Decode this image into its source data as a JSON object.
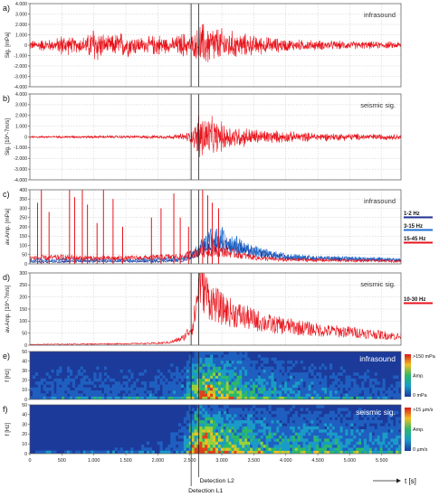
{
  "figure": {
    "time_axis": {
      "label": "t [s]",
      "range": [
        0,
        5800
      ],
      "ticks": [
        0,
        500,
        1000,
        1500,
        2000,
        2500,
        3000,
        3500,
        4000,
        4500,
        5000,
        5500
      ],
      "tick_labels": [
        "0",
        "500",
        "1.000",
        "1.500",
        "2.000",
        "2.500",
        "3.000",
        "3.500",
        "4.000",
        "4.500",
        "5.000",
        "5.500"
      ]
    },
    "detections": [
      {
        "label": "Detection L1",
        "t": 2520
      },
      {
        "label": "Detection L2",
        "t": 2640
      }
    ]
  },
  "chart_data": [
    {
      "panel": "a)",
      "type": "line",
      "annotation": "infrasound",
      "ylabel": "Sig. [mPa]",
      "ylim": [
        -4000,
        4000
      ],
      "y_ticks": [
        -4000,
        -3000,
        -2000,
        -1000,
        0,
        1000,
        2000,
        3000,
        4000
      ],
      "y_tick_labels": [
        "-4.000",
        "-3.000",
        "-2.000",
        "-1.000",
        "0",
        "1.000",
        "2.000",
        "3.000",
        "4.000"
      ],
      "grid": true,
      "color": "#e8141c",
      "envelope": {
        "t": [
          0,
          200,
          400,
          500,
          700,
          900,
          1000,
          1200,
          1400,
          1600,
          1800,
          2000,
          2200,
          2400,
          2500,
          2600,
          2650,
          2800,
          3000,
          3200,
          3500,
          3800,
          4100,
          4500,
          5000,
          5500,
          5800
        ],
        "amp": [
          500,
          700,
          650,
          1300,
          800,
          1100,
          2400,
          900,
          1500,
          1200,
          800,
          1300,
          700,
          1500,
          1000,
          1500,
          2600,
          2400,
          1900,
          1500,
          1100,
          850,
          650,
          550,
          450,
          400,
          380
        ]
      }
    },
    {
      "panel": "b)",
      "type": "line",
      "annotation": "seismic sig.",
      "ylabel": "Sig. [10^-7m/s]",
      "ylim": [
        -4000,
        4000
      ],
      "y_ticks": [
        -4000,
        -3000,
        -2000,
        -1000,
        0,
        1000,
        2000,
        3000,
        4000
      ],
      "y_tick_labels": [
        "-4.000",
        "-3.000",
        "-2.000",
        "-1.000",
        "0",
        "1.000",
        "2.000",
        "3.000",
        "4.000"
      ],
      "grid": true,
      "color": "#e8141c",
      "envelope": {
        "t": [
          0,
          500,
          1000,
          1500,
          2000,
          2300,
          2500,
          2600,
          2650,
          2700,
          2900,
          3200,
          3600,
          4000,
          4500,
          5000,
          5500,
          5800
        ],
        "amp": [
          120,
          120,
          150,
          150,
          180,
          250,
          600,
          1500,
          3300,
          2700,
          1800,
          1200,
          800,
          600,
          450,
          380,
          320,
          300
        ]
      }
    },
    {
      "panel": "c)",
      "type": "line",
      "annotation": "infrasound",
      "ylabel": "av.Amp. [mPa]",
      "ylim": [
        0,
        400
      ],
      "y_ticks": [
        0,
        50,
        100,
        150,
        200,
        250,
        300,
        350,
        400
      ],
      "y_tick_labels": [
        "0",
        "50",
        "100",
        "150",
        "200",
        "250",
        "300",
        "350",
        "400"
      ],
      "grid": true,
      "series": [
        {
          "name": "1-2 Hz",
          "color": "#1f2f8f",
          "t": [
            0,
            500,
            1000,
            1500,
            2000,
            2400,
            2600,
            2800,
            3000,
            3200,
            3400,
            3600,
            3800,
            4000,
            4500,
            5000,
            5500,
            5800
          ],
          "values": [
            10,
            12,
            14,
            12,
            14,
            20,
            60,
            100,
            110,
            90,
            70,
            55,
            45,
            35,
            30,
            25,
            22,
            20
          ],
          "spikes": []
        },
        {
          "name": "3-15 Hz",
          "color": "#1f6fd0",
          "t": [
            0,
            500,
            1000,
            1500,
            2000,
            2400,
            2600,
            2800,
            3000,
            3200,
            3400,
            3600,
            3800,
            4000,
            4500,
            5000,
            5500,
            5800
          ],
          "values": [
            20,
            25,
            22,
            20,
            25,
            30,
            70,
            130,
            140,
            110,
            80,
            60,
            50,
            40,
            30,
            28,
            25,
            22
          ],
          "spikes": []
        },
        {
          "name": "15-45 Hz",
          "color": "#e8141c",
          "t": [
            0,
            500,
            1000,
            1500,
            2000,
            2400,
            2600,
            2800,
            3000,
            3200,
            3400,
            3600,
            3800,
            4000,
            4500,
            5000,
            5500,
            5800
          ],
          "values": [
            30,
            35,
            30,
            30,
            35,
            40,
            60,
            70,
            65,
            55,
            40,
            30,
            25,
            22,
            20,
            18,
            16,
            15
          ],
          "spikes": [
            [
              120,
              330
            ],
            [
              180,
              400
            ],
            [
              300,
              280
            ],
            [
              620,
              400
            ],
            [
              700,
              360
            ],
            [
              820,
              400
            ],
            [
              900,
              320
            ],
            [
              1050,
              220
            ],
            [
              1150,
              400
            ],
            [
              1300,
              350
            ],
            [
              1450,
              200
            ],
            [
              1900,
              250
            ],
            [
              2050,
              300
            ],
            [
              2250,
              380
            ],
            [
              2350,
              250
            ],
            [
              2480,
              200
            ],
            [
              2700,
              400
            ],
            [
              2780,
              370
            ],
            [
              2850,
              330
            ],
            [
              2950,
              300
            ]
          ]
        }
      ]
    },
    {
      "panel": "d)",
      "type": "line",
      "annotation": "seismic sig.",
      "ylabel": "av.Amp. [10^-7m/s]",
      "ylim": [
        0,
        300
      ],
      "y_ticks": [
        0,
        50,
        100,
        150,
        200,
        250,
        300
      ],
      "y_tick_labels": [
        "0",
        "50",
        "100",
        "150",
        "200",
        "250",
        "300"
      ],
      "grid": true,
      "series": [
        {
          "name": "10-30 Hz",
          "color": "#e8141c",
          "t": [
            0,
            500,
            1000,
            1500,
            2000,
            2200,
            2400,
            2550,
            2620,
            2650,
            2700,
            2800,
            3000,
            3200,
            3500,
            3800,
            4000,
            4300,
            4600,
            5000,
            5300,
            5600,
            5800
          ],
          "values": [
            3,
            4,
            5,
            6,
            8,
            12,
            30,
            80,
            200,
            280,
            250,
            190,
            150,
            130,
            105,
            85,
            80,
            70,
            60,
            55,
            48,
            40,
            35
          ]
        }
      ]
    },
    {
      "panel": "e)",
      "type": "heatmap",
      "annotation": "infrasound",
      "ylabel": "f [Hz]",
      "ylim": [
        0,
        50
      ],
      "y_ticks": [
        0,
        10,
        20,
        30,
        40,
        50
      ],
      "y_tick_labels": [
        "0",
        "10",
        "20",
        "30",
        "40",
        "50"
      ],
      "colorbar": {
        "max_label": ">150 mPa",
        "mid_label": "Amp.",
        "min_label": "0 mPa"
      },
      "energy_profile": {
        "t": [
          0,
          500,
          1000,
          1500,
          2000,
          2400,
          2600,
          2800,
          3000,
          3500,
          4000,
          4500,
          5000,
          5800
        ],
        "level": [
          0.15,
          0.2,
          0.2,
          0.18,
          0.2,
          0.25,
          0.6,
          0.7,
          0.6,
          0.4,
          0.3,
          0.25,
          0.2,
          0.15
        ]
      }
    },
    {
      "panel": "f)",
      "type": "heatmap",
      "annotation": "seismic sig.",
      "ylabel": "f [Hz]",
      "ylim": [
        0,
        50
      ],
      "y_ticks": [
        0,
        10,
        20,
        30,
        40,
        50
      ],
      "y_tick_labels": [
        "0",
        "10",
        "20",
        "30",
        "40",
        "50"
      ],
      "colorbar": {
        "max_label": ">15 µm/s",
        "mid_label": "Amp.",
        "min_label": "0 µm/s"
      },
      "energy_profile": {
        "t": [
          0,
          500,
          1000,
          1500,
          2000,
          2400,
          2600,
          2700,
          2900,
          3200,
          3600,
          4000,
          4500,
          5000,
          5800
        ],
        "level": [
          0.08,
          0.08,
          0.1,
          0.1,
          0.12,
          0.2,
          0.8,
          0.9,
          0.7,
          0.55,
          0.45,
          0.4,
          0.4,
          0.35,
          0.3
        ]
      }
    }
  ]
}
